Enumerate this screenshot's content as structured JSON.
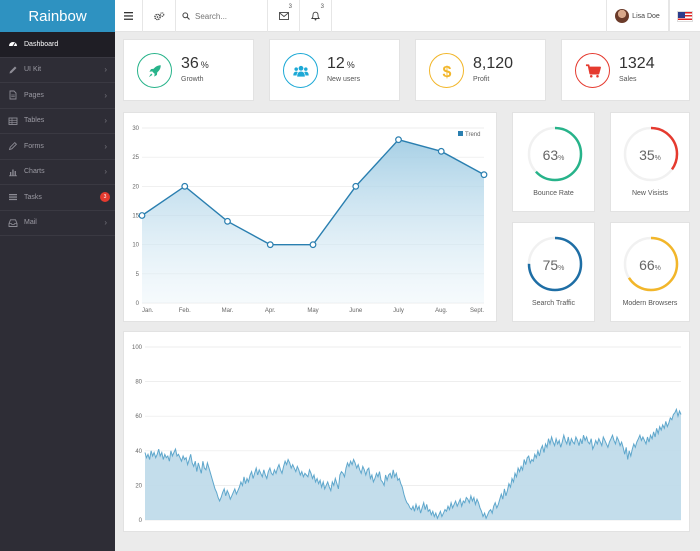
{
  "brand": "Rainbow",
  "topbar": {
    "search_placeholder": "Search...",
    "mail_count": "3",
    "bell_count": "3",
    "user_name": "Lisa Doe"
  },
  "sidebar": {
    "items": [
      {
        "label": "Dashboard",
        "icon": "dashboard-icon"
      },
      {
        "label": "UI Kit",
        "icon": "pencil-icon"
      },
      {
        "label": "Pages",
        "icon": "file-icon"
      },
      {
        "label": "Tables",
        "icon": "table-icon"
      },
      {
        "label": "Forms",
        "icon": "edit-icon"
      },
      {
        "label": "Charts",
        "icon": "bar-chart-icon"
      },
      {
        "label": "Tasks",
        "icon": "tasks-icon",
        "badge": "3"
      },
      {
        "label": "Mail",
        "icon": "inbox-icon"
      }
    ]
  },
  "stats": [
    {
      "value": "36",
      "unit": "%",
      "label": "Growth",
      "color": "#27b38a",
      "icon": "rocket-icon"
    },
    {
      "value": "12",
      "unit": "%",
      "label": "New users",
      "color": "#1da9d6",
      "icon": "users-icon"
    },
    {
      "value": "8,120",
      "unit": "",
      "label": "Profit",
      "color": "#f2b62a",
      "icon": "dollar-icon"
    },
    {
      "value": "1324",
      "unit": "",
      "label": "Sales",
      "color": "#e53a2f",
      "icon": "cart-icon"
    }
  ],
  "donuts": [
    {
      "value": 63,
      "unit": "%",
      "label": "Bounce Rate",
      "color": "#27b38a"
    },
    {
      "value": 35,
      "unit": "%",
      "label": "New Visists",
      "color": "#e53a2f"
    },
    {
      "value": 75,
      "unit": "%",
      "label": "Search Traffic",
      "color": "#1e6ea5"
    },
    {
      "value": 66,
      "unit": "%",
      "label": "Modern Browsers",
      "color": "#f2b62a"
    }
  ],
  "chart_data": [
    {
      "type": "area",
      "categories": [
        "Jan.",
        "Feb.",
        "Mar.",
        "Apr.",
        "May",
        "June",
        "July",
        "Aug.",
        "Sept."
      ],
      "series": [
        {
          "name": "Trend",
          "values": [
            15,
            20,
            14,
            10,
            10,
            20,
            28,
            26,
            22
          ]
        }
      ],
      "ylim": [
        0,
        30
      ],
      "yticks": [
        0,
        5,
        10,
        15,
        20,
        25,
        30
      ],
      "legend": "top-right",
      "color": "#2a7fb0",
      "grid": true
    },
    {
      "type": "area",
      "ylim": [
        0,
        100
      ],
      "yticks": [
        0,
        20,
        40,
        60,
        80,
        100
      ],
      "grid": true,
      "color": "#5fa7cc",
      "values": [
        39,
        36,
        38,
        35,
        40,
        37,
        39,
        36,
        38,
        41,
        37,
        39,
        35,
        38,
        36,
        37,
        34,
        40,
        37,
        39,
        41,
        37,
        38,
        36,
        34,
        37,
        35,
        36,
        32,
        35,
        38,
        33,
        31,
        34,
        28,
        33,
        30,
        27,
        34,
        30,
        29,
        33,
        30,
        27,
        24,
        21,
        18,
        16,
        13,
        11,
        13,
        16,
        18,
        14,
        17,
        15,
        12,
        14,
        16,
        18,
        15,
        17,
        19,
        22,
        20,
        25,
        21,
        24,
        22,
        26,
        28,
        24,
        27,
        30,
        26,
        29,
        27,
        25,
        29,
        26,
        24,
        28,
        30,
        27,
        26,
        29,
        27,
        30,
        32,
        29,
        27,
        31,
        34,
        32,
        35,
        33,
        30,
        32,
        30,
        28,
        31,
        29,
        26,
        28,
        25,
        27,
        26,
        25,
        29,
        27,
        24,
        26,
        22,
        24,
        21,
        23,
        19,
        22,
        18,
        20,
        22,
        19,
        17,
        22,
        20,
        24,
        21,
        18,
        26,
        28,
        27,
        25,
        30,
        33,
        31,
        34,
        32,
        35,
        33,
        30,
        32,
        29,
        27,
        31,
        29,
        26,
        29,
        30,
        24,
        26,
        22,
        24,
        27,
        25,
        28,
        23,
        22,
        20,
        26,
        23,
        26,
        27,
        24,
        29,
        25,
        27,
        23,
        24,
        21,
        19,
        15,
        12,
        10,
        9,
        7,
        6,
        8,
        5,
        9,
        6,
        8,
        4,
        7,
        10,
        6,
        9,
        5,
        6,
        3,
        5,
        2,
        4,
        1,
        3,
        5,
        2,
        4,
        6,
        5,
        8,
        6,
        10,
        7,
        9,
        11,
        8,
        10,
        12,
        8,
        11,
        10,
        13,
        12,
        10,
        14,
        11,
        13,
        9,
        12,
        10,
        7,
        5,
        2,
        4,
        1,
        3,
        5,
        6,
        4,
        8,
        10,
        7,
        9,
        12,
        15,
        12,
        18,
        14,
        17,
        21,
        19,
        24,
        22,
        27,
        25,
        30,
        28,
        31,
        29,
        35,
        32,
        36,
        37,
        33,
        35,
        34,
        38,
        36,
        40,
        37,
        41,
        43,
        39,
        44,
        42,
        47,
        44,
        48,
        45,
        43,
        47,
        44,
        46,
        42,
        45,
        49,
        46,
        44,
        48,
        43,
        47,
        45,
        44,
        48,
        46,
        43,
        47,
        44,
        49,
        46,
        48,
        45,
        44,
        47,
        41,
        43,
        46,
        44,
        47,
        45,
        43,
        48,
        46,
        44,
        42,
        45,
        47,
        49,
        46,
        44,
        48,
        46,
        43,
        45,
        42,
        38,
        42,
        35,
        40,
        37,
        41,
        44,
        42,
        45,
        47,
        49,
        46,
        48,
        46,
        44,
        48,
        45,
        49,
        47,
        51,
        48,
        53,
        50,
        54,
        52,
        55,
        53,
        57,
        54,
        56,
        59,
        58,
        61,
        62,
        64,
        60,
        63,
        61
      ]
    }
  ]
}
